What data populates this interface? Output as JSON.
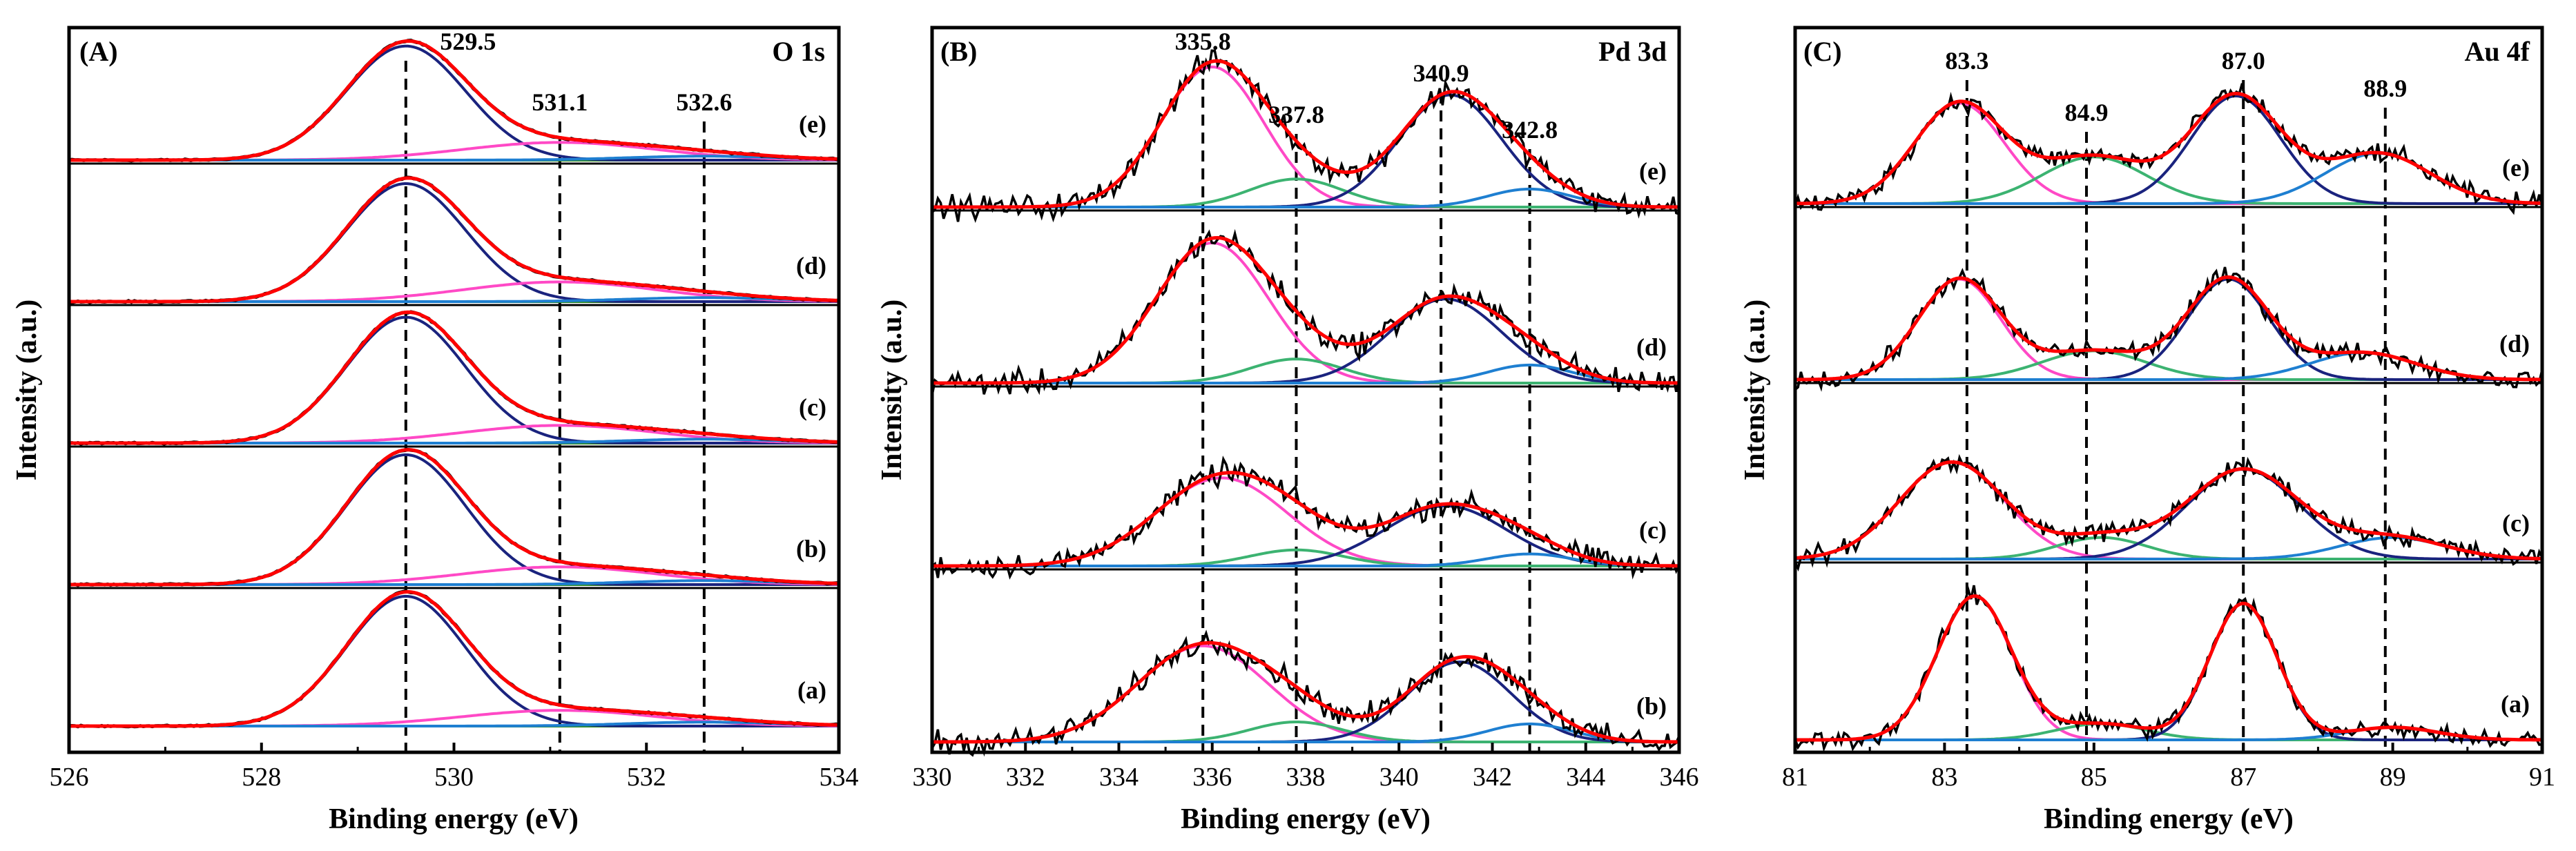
{
  "chart_data": [
    {
      "type": "line",
      "panel_label": "(A)",
      "title": "O 1s",
      "xlabel": "Binding energy (eV)",
      "ylabel": "Intensity (a.u.)",
      "xlim": [
        526,
        534
      ],
      "xticks": [
        526,
        528,
        530,
        532,
        534
      ],
      "reference_lines": [
        {
          "x": 529.5,
          "label": "529.5"
        },
        {
          "x": 531.1,
          "label": "531.1"
        },
        {
          "x": 532.6,
          "label": "532.6"
        }
      ],
      "series_colors": {
        "raw": "#000000",
        "envelope": "#ff0000",
        "background": "#2e8b22",
        "peaks": [
          "#1a237e",
          "#ff49c6",
          "#1e7fd1"
        ]
      },
      "spectra": [
        {
          "label": "(e)",
          "peaks": [
            {
              "center": 529.5,
              "height": 58,
              "width": 0.62,
              "color": "#1a237e"
            },
            {
              "center": 531.1,
              "height": 9,
              "width": 1.0,
              "color": "#ff49c6"
            },
            {
              "center": 532.6,
              "height": 2,
              "width": 0.8,
              "color": "#1e7fd1"
            }
          ]
        },
        {
          "label": "(d)",
          "peaks": [
            {
              "center": 529.5,
              "height": 60,
              "width": 0.62,
              "color": "#1a237e"
            },
            {
              "center": 531.1,
              "height": 10,
              "width": 1.0,
              "color": "#ff49c6"
            },
            {
              "center": 532.6,
              "height": 2,
              "width": 0.8,
              "color": "#1e7fd1"
            }
          ]
        },
        {
          "label": "(c)",
          "peaks": [
            {
              "center": 529.5,
              "height": 64,
              "width": 0.62,
              "color": "#1a237e"
            },
            {
              "center": 531.1,
              "height": 9,
              "width": 1.0,
              "color": "#ff49c6"
            },
            {
              "center": 532.6,
              "height": 2,
              "width": 0.8,
              "color": "#1e7fd1"
            }
          ]
        },
        {
          "label": "(b)",
          "peaks": [
            {
              "center": 529.5,
              "height": 66,
              "width": 0.62,
              "color": "#1a237e"
            },
            {
              "center": 531.1,
              "height": 9,
              "width": 1.0,
              "color": "#ff49c6"
            },
            {
              "center": 532.6,
              "height": 2,
              "width": 0.8,
              "color": "#1e7fd1"
            }
          ]
        },
        {
          "label": "(a)",
          "peaks": [
            {
              "center": 529.5,
              "height": 66,
              "width": 0.62,
              "color": "#1a237e"
            },
            {
              "center": 531.1,
              "height": 8,
              "width": 1.0,
              "color": "#ff49c6"
            },
            {
              "center": 532.6,
              "height": 2,
              "width": 0.8,
              "color": "#1e7fd1"
            }
          ]
        }
      ]
    },
    {
      "type": "line",
      "panel_label": "(B)",
      "title": "Pd 3d",
      "xlabel": "Binding energy (eV)",
      "ylabel": "Intensity (a.u.)",
      "xlim": [
        330,
        346
      ],
      "xticks": [
        330,
        332,
        334,
        336,
        338,
        340,
        342,
        344,
        346
      ],
      "reference_lines": [
        {
          "x": 335.8,
          "label": "335.8"
        },
        {
          "x": 337.8,
          "label": "337.8"
        },
        {
          "x": 340.9,
          "label": "340.9"
        },
        {
          "x": 342.8,
          "label": "342.8"
        }
      ],
      "series_colors": {
        "raw": "#000000",
        "envelope": "#ff0000",
        "background": "#1e90ff",
        "peaks": [
          "#ff49c6",
          "#3cb371",
          "#1a237e",
          "#1e7fd1"
        ]
      },
      "spectra": [
        {
          "label": "(e)",
          "peaks": [
            {
              "center": 336.0,
              "height": 70,
              "width": 1.1,
              "color": "#ff49c6"
            },
            {
              "center": 337.8,
              "height": 14,
              "width": 1.0,
              "color": "#3cb371"
            },
            {
              "center": 341.1,
              "height": 56,
              "width": 1.1,
              "color": "#1a237e"
            },
            {
              "center": 342.8,
              "height": 9,
              "width": 0.9,
              "color": "#1e7fd1"
            }
          ]
        },
        {
          "label": "(d)",
          "peaks": [
            {
              "center": 336.0,
              "height": 70,
              "width": 1.2,
              "color": "#ff49c6"
            },
            {
              "center": 337.8,
              "height": 12,
              "width": 1.0,
              "color": "#3cb371"
            },
            {
              "center": 341.0,
              "height": 42,
              "width": 1.2,
              "color": "#1a237e"
            },
            {
              "center": 342.8,
              "height": 9,
              "width": 0.9,
              "color": "#1e7fd1"
            }
          ]
        },
        {
          "label": "(c)",
          "peaks": [
            {
              "center": 336.2,
              "height": 44,
              "width": 1.4,
              "color": "#ff49c6"
            },
            {
              "center": 337.8,
              "height": 8,
              "width": 1.0,
              "color": "#3cb371"
            },
            {
              "center": 341.0,
              "height": 30,
              "width": 1.3,
              "color": "#1a237e"
            },
            {
              "center": 342.8,
              "height": 6,
              "width": 0.9,
              "color": "#1e7fd1"
            }
          ]
        },
        {
          "label": "(b)",
          "peaks": [
            {
              "center": 335.8,
              "height": 48,
              "width": 1.4,
              "color": "#ff49c6"
            },
            {
              "center": 337.8,
              "height": 10,
              "width": 1.0,
              "color": "#3cb371"
            },
            {
              "center": 341.3,
              "height": 40,
              "width": 1.1,
              "color": "#1a237e"
            },
            {
              "center": 342.8,
              "height": 9,
              "width": 0.9,
              "color": "#1e7fd1"
            }
          ]
        }
      ]
    },
    {
      "type": "line",
      "panel_label": "(C)",
      "title": "Au 4f",
      "xlabel": "Binding energy (eV)",
      "ylabel": "Intensity (a.u.)",
      "xlim": [
        81,
        91
      ],
      "xticks": [
        81,
        83,
        85,
        87,
        89,
        91
      ],
      "reference_lines": [
        {
          "x": 83.3,
          "label": "83.3"
        },
        {
          "x": 84.9,
          "label": "84.9"
        },
        {
          "x": 87.0,
          "label": "87.0"
        },
        {
          "x": 88.9,
          "label": "88.9"
        }
      ],
      "series_colors": {
        "raw": "#000000",
        "envelope": "#ff0000",
        "background": "#2e8b22",
        "peaks": [
          "#ff49c6",
          "#3cb371",
          "#1a237e",
          "#1e7fd1"
        ]
      },
      "spectra": [
        {
          "label": "(e)",
          "peaks": [
            {
              "center": 83.2,
              "height": 56,
              "width": 0.6,
              "color": "#ff49c6"
            },
            {
              "center": 85.0,
              "height": 26,
              "width": 0.7,
              "color": "#3cb371"
            },
            {
              "center": 86.9,
              "height": 60,
              "width": 0.6,
              "color": "#1a237e"
            },
            {
              "center": 88.8,
              "height": 28,
              "width": 0.7,
              "color": "#1e7fd1"
            }
          ]
        },
        {
          "label": "(d)",
          "peaks": [
            {
              "center": 83.2,
              "height": 56,
              "width": 0.55,
              "color": "#ff49c6"
            },
            {
              "center": 85.0,
              "height": 16,
              "width": 0.7,
              "color": "#3cb371"
            },
            {
              "center": 86.8,
              "height": 56,
              "width": 0.55,
              "color": "#1a237e"
            },
            {
              "center": 88.6,
              "height": 15,
              "width": 0.7,
              "color": "#1e7fd1"
            }
          ]
        },
        {
          "label": "(c)",
          "peaks": [
            {
              "center": 83.1,
              "height": 54,
              "width": 0.7,
              "color": "#ff49c6"
            },
            {
              "center": 85.1,
              "height": 12,
              "width": 0.6,
              "color": "#3cb371"
            },
            {
              "center": 87.0,
              "height": 50,
              "width": 0.75,
              "color": "#1a237e"
            },
            {
              "center": 89.0,
              "height": 12,
              "width": 0.7,
              "color": "#1e7fd1"
            }
          ]
        },
        {
          "label": "(a)",
          "peaks": [
            {
              "center": 83.4,
              "height": 80,
              "width": 0.5,
              "color": "#ff49c6"
            },
            {
              "center": 85.1,
              "height": 9,
              "width": 0.6,
              "color": "#3cb371"
            },
            {
              "center": 87.0,
              "height": 76,
              "width": 0.45,
              "color": "#1a237e"
            },
            {
              "center": 89.0,
              "height": 7,
              "width": 0.6,
              "color": "#1e7fd1"
            }
          ]
        }
      ]
    }
  ]
}
